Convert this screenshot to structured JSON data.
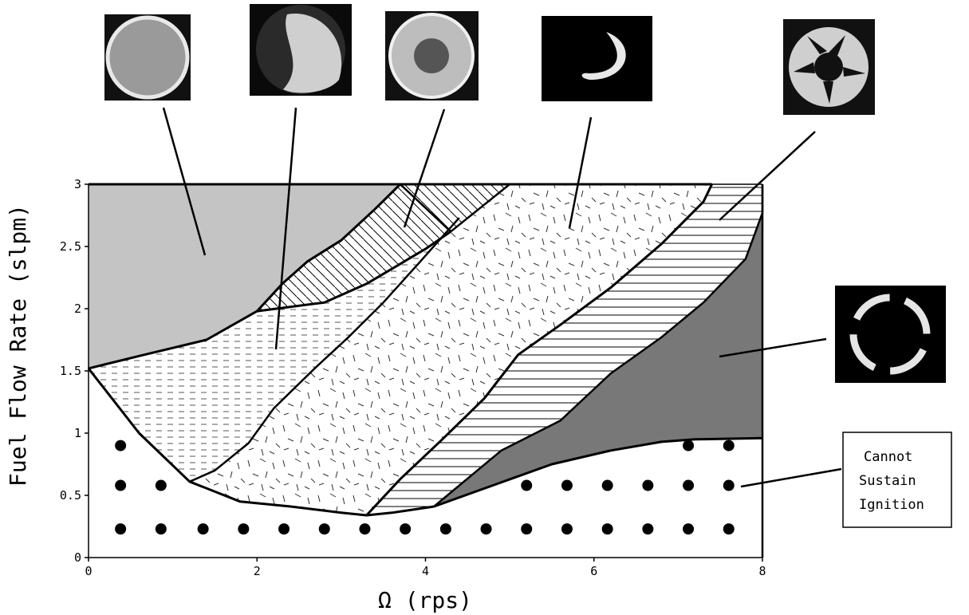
{
  "chart_data": {
    "type": "area",
    "title": "",
    "xlabel": "Ω (rps)",
    "ylabel": "Fuel Flow Rate (slpm)",
    "xlim": [
      0,
      8
    ],
    "ylim": [
      0,
      3
    ],
    "x_ticks": [
      "0",
      "2",
      "4",
      "6",
      "8"
    ],
    "y_ticks": [
      "0",
      "0.5",
      "1",
      "1.5",
      "2",
      "2.5",
      "3"
    ],
    "grid": false,
    "legend": "none",
    "boundaries": {
      "ignition_limit": [
        [
          0,
          1.52
        ],
        [
          0.6,
          1.0
        ],
        [
          1.2,
          0.61
        ],
        [
          1.8,
          0.45
        ],
        [
          2.4,
          0.41
        ],
        [
          3.0,
          0.36
        ],
        [
          3.3,
          0.34
        ],
        [
          3.6,
          0.36
        ],
        [
          4.1,
          0.41
        ],
        [
          4.8,
          0.58
        ],
        [
          5.5,
          0.75
        ],
        [
          6.2,
          0.86
        ],
        [
          6.8,
          0.93
        ],
        [
          7.2,
          0.95
        ],
        [
          8.0,
          0.96
        ]
      ],
      "uniform_upper": [
        [
          0,
          1.52
        ],
        [
          0.6,
          1.62
        ],
        [
          1.4,
          1.75
        ],
        [
          2.0,
          1.98
        ],
        [
          2.3,
          2.2
        ],
        [
          2.6,
          2.38
        ],
        [
          3.0,
          2.55
        ],
        [
          3.4,
          2.8
        ],
        [
          3.7,
          3.0
        ]
      ],
      "lobe_lower": [
        [
          2.0,
          1.98
        ],
        [
          2.8,
          2.05
        ],
        [
          3.3,
          2.2
        ],
        [
          4.0,
          2.48
        ],
        [
          4.3,
          2.62
        ]
      ],
      "lobe_upper": [
        [
          2.3,
          2.2
        ],
        [
          2.6,
          2.38
        ],
        [
          3.0,
          2.55
        ],
        [
          3.4,
          2.8
        ],
        [
          3.7,
          3.0
        ]
      ],
      "lobe_right": [
        [
          3.7,
          3.0
        ],
        [
          4.3,
          2.62
        ],
        [
          5.0,
          3.0
        ]
      ],
      "dashed_right": [
        [
          1.2,
          0.61
        ],
        [
          1.5,
          0.7
        ],
        [
          1.9,
          0.92
        ],
        [
          2.2,
          1.2
        ],
        [
          2.7,
          1.53
        ],
        [
          3.1,
          1.78
        ],
        [
          3.5,
          2.05
        ],
        [
          3.9,
          2.35
        ],
        [
          4.4,
          2.73
        ]
      ],
      "dotted_right": [
        [
          3.3,
          0.34
        ],
        [
          3.7,
          0.63
        ],
        [
          4.2,
          0.95
        ],
        [
          4.7,
          1.28
        ],
        [
          5.1,
          1.63
        ],
        [
          5.6,
          1.87
        ],
        [
          6.2,
          2.17
        ],
        [
          6.8,
          2.52
        ],
        [
          7.3,
          2.86
        ],
        [
          7.4,
          3.0
        ]
      ],
      "striped_right": [
        [
          4.1,
          0.41
        ],
        [
          4.9,
          0.86
        ],
        [
          5.6,
          1.1
        ],
        [
          6.2,
          1.48
        ],
        [
          6.8,
          1.77
        ],
        [
          7.3,
          2.05
        ],
        [
          7.8,
          2.4
        ],
        [
          8.0,
          2.77
        ],
        [
          8.0,
          3.0
        ]
      ]
    },
    "regions": [
      {
        "pattern": "solid-light-gray",
        "fill": "#c4c4c4"
      },
      {
        "pattern": "dashed-horizontal"
      },
      {
        "pattern": "diagonal-hatch"
      },
      {
        "pattern": "random-dashes"
      },
      {
        "pattern": "horizontal-lines"
      },
      {
        "pattern": "solid-dark-gray",
        "fill": "#787878"
      },
      {
        "pattern": "dots"
      }
    ],
    "annotations": [
      {
        "text_lines": [
          "Cannot",
          "Sustain",
          "Ignition"
        ],
        "box": true
      }
    ]
  }
}
